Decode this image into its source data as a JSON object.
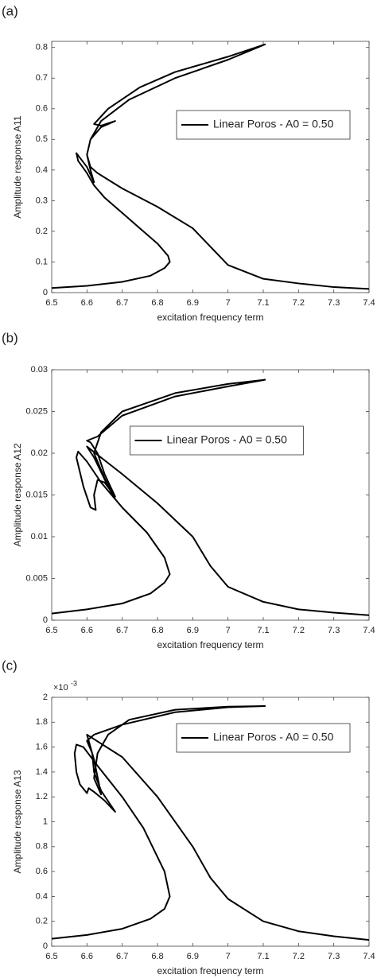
{
  "chart_data": [
    {
      "type": "line",
      "panel_label": "(a)",
      "xlabel": "excitation frequency term",
      "ylabel": "Amplitude response A11",
      "xlim": [
        6.5,
        7.4
      ],
      "xticks": [
        6.5,
        6.6,
        6.7,
        6.8,
        6.9,
        7,
        7.1,
        7.2,
        7.3,
        7.4
      ],
      "ylim": [
        0,
        0.82
      ],
      "yticks": [
        0,
        0.1,
        0.2,
        0.3,
        0.4,
        0.5,
        0.6,
        0.7,
        0.8
      ],
      "legend": "upper right",
      "series": [
        {
          "name": "Linear Poros - A0 = 0.50",
          "color": "#000000",
          "x": [
            6.5,
            6.6,
            6.7,
            6.78,
            6.82,
            6.835,
            6.83,
            6.8,
            6.75,
            6.7,
            6.65,
            6.62,
            6.6,
            6.575,
            6.57,
            6.58,
            6.6,
            6.62,
            6.61,
            6.6,
            6.61,
            6.64,
            6.68,
            6.64,
            6.62,
            6.66,
            6.75,
            6.85,
            7.0,
            7.105,
            7.0,
            6.85,
            6.72,
            6.64,
            6.61,
            6.6,
            6.61,
            6.63,
            6.7,
            6.8,
            6.9,
            6.95,
            7.0,
            7.1,
            7.2,
            7.3,
            7.4
          ],
          "values": [
            0.015,
            0.022,
            0.035,
            0.055,
            0.08,
            0.1,
            0.12,
            0.16,
            0.21,
            0.26,
            0.31,
            0.35,
            0.39,
            0.43,
            0.455,
            0.44,
            0.41,
            0.36,
            0.4,
            0.45,
            0.5,
            0.54,
            0.56,
            0.545,
            0.55,
            0.6,
            0.67,
            0.72,
            0.77,
            0.81,
            0.76,
            0.7,
            0.63,
            0.56,
            0.5,
            0.45,
            0.41,
            0.39,
            0.34,
            0.28,
            0.21,
            0.15,
            0.09,
            0.045,
            0.03,
            0.018,
            0.012
          ]
        }
      ]
    },
    {
      "type": "line",
      "panel_label": "(b)",
      "xlabel": "excitation frequency term",
      "ylabel": "Amplitude response A12",
      "xlim": [
        6.5,
        7.4
      ],
      "xticks": [
        6.5,
        6.6,
        6.7,
        6.8,
        6.9,
        7,
        7.1,
        7.2,
        7.3,
        7.4
      ],
      "ylim": [
        0,
        0.03
      ],
      "yticks": [
        0,
        0.005,
        0.01,
        0.015,
        0.02,
        0.025,
        0.03
      ],
      "legend": "upper center",
      "series": [
        {
          "name": "Linear Poros - A0 = 0.50",
          "color": "#000000",
          "x": [
            6.5,
            6.6,
            6.7,
            6.78,
            6.82,
            6.835,
            6.82,
            6.77,
            6.7,
            6.64,
            6.6,
            6.575,
            6.57,
            6.59,
            6.61,
            6.625,
            6.62,
            6.63,
            6.65,
            6.68,
            6.65,
            6.63,
            6.61,
            6.6,
            6.63,
            6.7,
            6.85,
            7.0,
            7.105,
            7.0,
            6.85,
            6.7,
            6.64,
            6.62,
            6.65,
            6.68,
            6.66,
            6.62,
            6.6,
            6.7,
            6.8,
            6.9,
            6.95,
            7.0,
            7.1,
            7.2,
            7.3,
            7.4
          ],
          "values": [
            0.0008,
            0.0013,
            0.002,
            0.0032,
            0.0045,
            0.0055,
            0.0075,
            0.0105,
            0.0135,
            0.0165,
            0.019,
            0.0202,
            0.0195,
            0.016,
            0.0135,
            0.0132,
            0.015,
            0.0168,
            0.0165,
            0.0148,
            0.0175,
            0.02,
            0.0213,
            0.0215,
            0.022,
            0.0245,
            0.0268,
            0.028,
            0.0288,
            0.0283,
            0.0272,
            0.025,
            0.0225,
            0.02,
            0.017,
            0.0145,
            0.016,
            0.0195,
            0.0208,
            0.0175,
            0.014,
            0.01,
            0.0065,
            0.004,
            0.0022,
            0.0013,
            0.0009,
            0.0006
          ]
        }
      ]
    },
    {
      "type": "line",
      "panel_label": "(c)",
      "xlabel": "excitation frequency term",
      "ylabel": "Amplitude response A13",
      "y_multiplier": {
        "base": "×10",
        "exponent": "-3"
      },
      "xlim": [
        6.5,
        7.4
      ],
      "xticks": [
        6.5,
        6.6,
        6.7,
        6.8,
        6.9,
        7,
        7.1,
        7.2,
        7.3,
        7.4
      ],
      "ylim": [
        0,
        2
      ],
      "yticks": [
        0,
        0.2,
        0.4,
        0.6,
        0.8,
        1,
        1.2,
        1.4,
        1.6,
        1.8,
        2
      ],
      "legend": "upper right",
      "series": [
        {
          "name": "Linear Poros - A0 = 0.50",
          "color": "#000000",
          "x": [
            6.5,
            6.6,
            6.7,
            6.78,
            6.82,
            6.835,
            6.82,
            6.76,
            6.7,
            6.63,
            6.59,
            6.57,
            6.565,
            6.57,
            6.58,
            6.6,
            6.605,
            6.62,
            6.65,
            6.68,
            6.64,
            6.62,
            6.615,
            6.6,
            6.62,
            6.7,
            6.85,
            7.0,
            7.105,
            7.0,
            6.85,
            6.72,
            6.66,
            6.63,
            6.62,
            6.64,
            6.62,
            6.6,
            6.7,
            6.8,
            6.9,
            6.95,
            7.0,
            7.1,
            7.2,
            7.3,
            7.4
          ],
          "values": [
            0.06,
            0.09,
            0.14,
            0.22,
            0.3,
            0.4,
            0.6,
            0.95,
            1.2,
            1.45,
            1.6,
            1.62,
            1.55,
            1.4,
            1.3,
            1.23,
            1.27,
            1.24,
            1.17,
            1.08,
            1.25,
            1.4,
            1.55,
            1.65,
            1.7,
            1.78,
            1.88,
            1.92,
            1.93,
            1.925,
            1.9,
            1.82,
            1.7,
            1.55,
            1.35,
            1.22,
            1.5,
            1.7,
            1.52,
            1.2,
            0.8,
            0.55,
            0.38,
            0.2,
            0.12,
            0.08,
            0.05
          ]
        }
      ]
    }
  ]
}
